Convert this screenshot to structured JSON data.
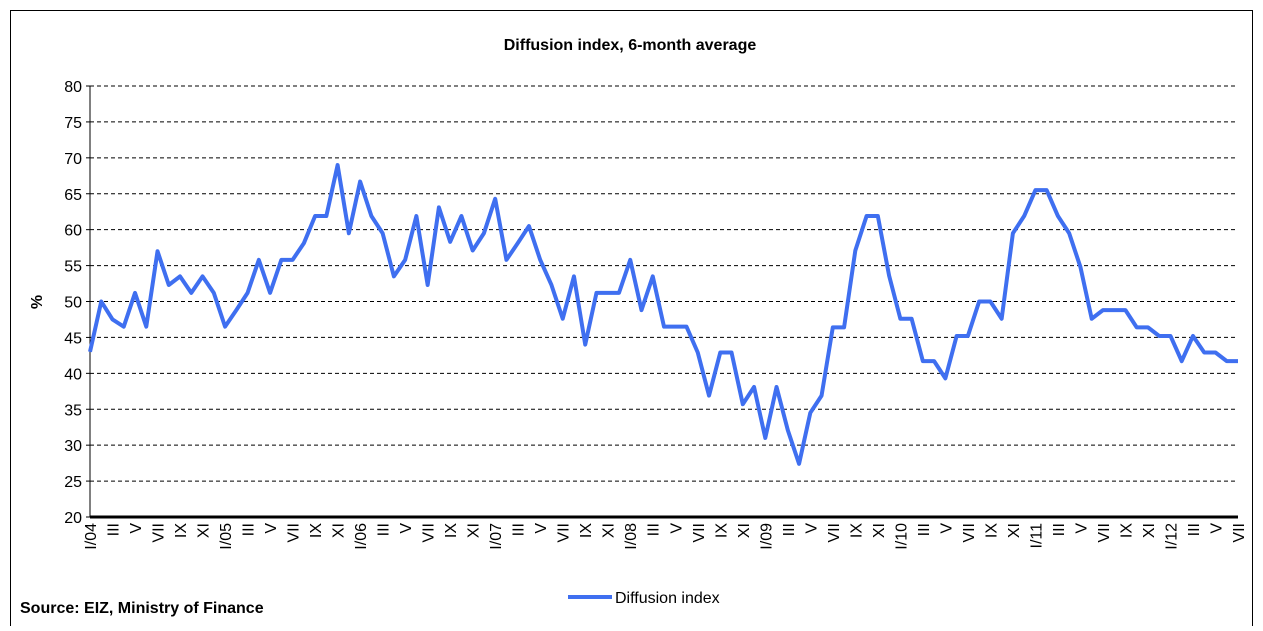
{
  "chart_data": {
    "type": "line",
    "title": "Diffusion index, 6-month average",
    "ylabel": "%",
    "source": "Source: EIZ, Ministry of Finance",
    "categories": [
      "I/04",
      null,
      "III",
      null,
      "V",
      null,
      "VII",
      null,
      "IX",
      null,
      "XI",
      null,
      "I/05",
      null,
      "III",
      null,
      "V",
      null,
      "VII",
      null,
      "IX",
      null,
      "XI",
      null,
      "I/06",
      null,
      "III",
      null,
      "V",
      null,
      "VII",
      null,
      "IX",
      null,
      "XI",
      null,
      "I/07",
      null,
      "III",
      null,
      "V",
      null,
      "VII",
      null,
      "IX",
      null,
      "XI",
      null,
      "I/08",
      null,
      "III",
      null,
      "V",
      null,
      "VII",
      null,
      "IX",
      null,
      "XI",
      null,
      "I/09",
      null,
      "III",
      null,
      "V",
      null,
      "VII",
      null,
      "IX",
      null,
      "XI",
      null,
      "I/10",
      null,
      "III",
      null,
      "V",
      null,
      "VII",
      null,
      "IX",
      null,
      "XI",
      null,
      "I/11",
      null,
      "III",
      null,
      "V",
      null,
      "VII",
      null,
      "IX",
      null,
      "XI",
      null,
      "I/12",
      null,
      "III",
      null,
      "V",
      null,
      "VII"
    ],
    "series": [
      {
        "name": "Diffusion index",
        "color": "#3f6ff0",
        "values": [
          43,
          50,
          47.5,
          46.5,
          51.2,
          46.5,
          57,
          52.3,
          53.5,
          51.2,
          53.5,
          51.2,
          46.5,
          48.8,
          51.2,
          55.8,
          51.2,
          55.8,
          55.8,
          58.1,
          61.9,
          61.9,
          69,
          59.5,
          66.7,
          61.9,
          59.5,
          53.5,
          55.8,
          61.9,
          52.3,
          63.1,
          58.3,
          61.9,
          57.1,
          59.5,
          64.3,
          55.8,
          58.1,
          60.5,
          55.8,
          52.3,
          47.6,
          53.5,
          44,
          51.2,
          51.2,
          51.2,
          55.8,
          48.8,
          53.5,
          46.5,
          46.5,
          46.5,
          42.9,
          36.9,
          42.9,
          42.9,
          35.7,
          38.1,
          31,
          38.1,
          32.1,
          27.4,
          34.5,
          36.9,
          46.4,
          46.4,
          57.1,
          61.9,
          61.9,
          53.6,
          47.6,
          47.6,
          41.7,
          41.7,
          39.3,
          45.2,
          45.2,
          50,
          50,
          47.6,
          59.5,
          61.9,
          65.5,
          65.5,
          61.9,
          59.5,
          54.8,
          47.6,
          48.8,
          48.8,
          48.8,
          46.4,
          46.4,
          45.2,
          45.2,
          41.7,
          45.2,
          42.9,
          42.9,
          41.7,
          41.7
        ]
      }
    ],
    "ylim": [
      20,
      80
    ],
    "yticks": [
      20,
      25,
      30,
      35,
      40,
      45,
      50,
      55,
      60,
      65,
      70,
      75,
      80
    ],
    "grid": true
  }
}
